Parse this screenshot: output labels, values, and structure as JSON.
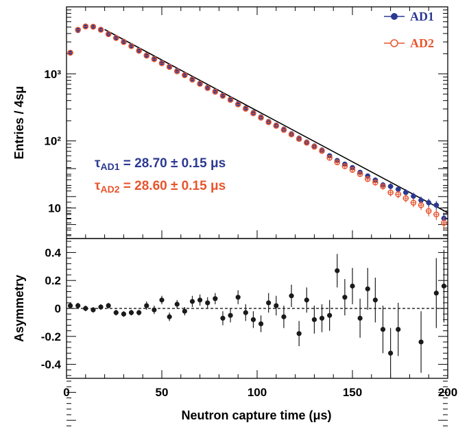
{
  "chart_data": [
    {
      "type": "scatter",
      "title": "",
      "xlabel": "",
      "ylabel": "Entries / 4sμ",
      "xlim": [
        0,
        200
      ],
      "ylim": [
        3.5,
        10000
      ],
      "yscale": "log",
      "yticks": [
        {
          "label": "10",
          "value": 10
        },
        {
          "label": "10²",
          "value": 100
        },
        {
          "label": "10³",
          "value": 1000
        }
      ],
      "legend": {
        "placement": "top-right",
        "entries": [
          "AD1",
          "AD2"
        ]
      },
      "annotations": [
        {
          "name": "AD1",
          "text": "τAD1 = 28.70 ± 0.15 μs",
          "sym": "τ",
          "sub": "AD1",
          "rest": " = 28.70 ± 0.15 μs"
        },
        {
          "name": "AD2",
          "text": "τAD2 = 28.60 ± 0.15 μs",
          "sym": "τ",
          "sub": "AD2",
          "rest": " = 28.60 ± 0.15 μs"
        }
      ],
      "fit": {
        "type": "exponential",
        "tau_us": 28.65,
        "x": [
          20,
          200
        ],
        "y": [
          4600,
          8.5
        ]
      },
      "series": [
        {
          "name": "AD1",
          "color": "#2b3990",
          "marker": "filled-circle",
          "x": [
            2,
            6,
            10,
            14,
            18,
            22,
            26,
            30,
            34,
            38,
            42,
            46,
            50,
            54,
            58,
            62,
            66,
            70,
            74,
            78,
            82,
            86,
            90,
            94,
            98,
            102,
            106,
            110,
            114,
            118,
            122,
            126,
            130,
            134,
            138,
            142,
            146,
            150,
            154,
            158,
            162,
            166,
            170,
            174,
            178,
            182,
            186,
            190,
            194,
            198
          ],
          "y": [
            2080,
            4450,
            5150,
            5100,
            4600,
            3980,
            3480,
            3050,
            2640,
            2260,
            1910,
            1700,
            1480,
            1300,
            1120,
            975,
            840,
            725,
            630,
            555,
            480,
            420,
            360,
            310,
            265,
            228,
            195,
            172,
            150,
            128,
            110,
            96,
            84,
            73,
            60,
            51,
            45,
            40,
            34,
            30,
            26,
            22,
            21,
            19,
            17,
            15,
            13,
            12,
            11,
            7
          ]
        },
        {
          "name": "AD2",
          "color": "#e8542d",
          "marker": "open-circle",
          "x": [
            2,
            6,
            10,
            14,
            18,
            22,
            26,
            30,
            34,
            38,
            42,
            46,
            50,
            54,
            58,
            62,
            66,
            70,
            74,
            78,
            82,
            86,
            90,
            94,
            98,
            102,
            106,
            110,
            114,
            118,
            122,
            126,
            130,
            134,
            138,
            142,
            146,
            150,
            154,
            158,
            162,
            166,
            170,
            174,
            178,
            182,
            186,
            190,
            194,
            198
          ],
          "y": [
            2070,
            4550,
            5100,
            5050,
            4550,
            3920,
            3430,
            2990,
            2590,
            2210,
            1870,
            1660,
            1440,
            1270,
            1090,
            955,
            820,
            710,
            615,
            540,
            470,
            410,
            350,
            302,
            258,
            222,
            190,
            168,
            146,
            125,
            107,
            94,
            82,
            71,
            56,
            48,
            42,
            37,
            32,
            27,
            24,
            21,
            17,
            16,
            14,
            12,
            11,
            9,
            8,
            6
          ]
        }
      ]
    },
    {
      "type": "scatter",
      "title": "",
      "xlabel": "Neutron capture time (μs)",
      "ylabel": "Asymmetry",
      "xlim": [
        0,
        200
      ],
      "ylim": [
        -0.5,
        0.5
      ],
      "xticks": [
        0,
        50,
        100,
        150,
        200
      ],
      "yticks": [
        -0.4,
        -0.2,
        0,
        0.2,
        0.4
      ],
      "reference_line": {
        "y": 0,
        "style": "dashed"
      },
      "series": [
        {
          "name": "",
          "color": "#1a1a1a",
          "marker": "filled-circle",
          "x": [
            2,
            6,
            10,
            14,
            18,
            22,
            26,
            30,
            34,
            38,
            42,
            46,
            50,
            54,
            58,
            62,
            66,
            70,
            74,
            78,
            82,
            86,
            90,
            94,
            98,
            102,
            106,
            110,
            114,
            118,
            122,
            126,
            130,
            134,
            138,
            142,
            146,
            150,
            154,
            158,
            162,
            166,
            170,
            174,
            178,
            182,
            186,
            190,
            194,
            198
          ],
          "y": [
            0.02,
            0.02,
            0.0,
            -0.01,
            0.01,
            0.02,
            -0.03,
            -0.04,
            -0.03,
            -0.03,
            0.02,
            -0.01,
            0.06,
            -0.06,
            0.03,
            -0.02,
            0.05,
            0.06,
            0.04,
            0.07,
            -0.07,
            -0.05,
            0.08,
            -0.03,
            -0.08,
            -0.11,
            0.04,
            0.02,
            -0.06,
            0.09,
            -0.18,
            0.06,
            -0.08,
            -0.07,
            -0.05,
            0.27,
            0.08,
            0.16,
            -0.07,
            0.14,
            0.06,
            -0.15,
            -0.32,
            -0.15,
            null,
            null,
            -0.24,
            null,
            0.11,
            0.16
          ],
          "err": [
            0.02,
            0.02,
            0.02,
            0.02,
            0.02,
            0.02,
            0.02,
            0.02,
            0.02,
            0.02,
            0.03,
            0.03,
            0.03,
            0.03,
            0.03,
            0.03,
            0.04,
            0.04,
            0.04,
            0.04,
            0.05,
            0.05,
            0.05,
            0.06,
            0.06,
            0.06,
            0.07,
            0.07,
            0.08,
            0.08,
            0.09,
            0.09,
            0.1,
            0.1,
            0.11,
            0.12,
            0.13,
            0.13,
            0.14,
            0.15,
            0.16,
            0.17,
            0.18,
            0.19,
            null,
            null,
            0.22,
            null,
            0.25,
            0.26
          ]
        }
      ]
    }
  ]
}
